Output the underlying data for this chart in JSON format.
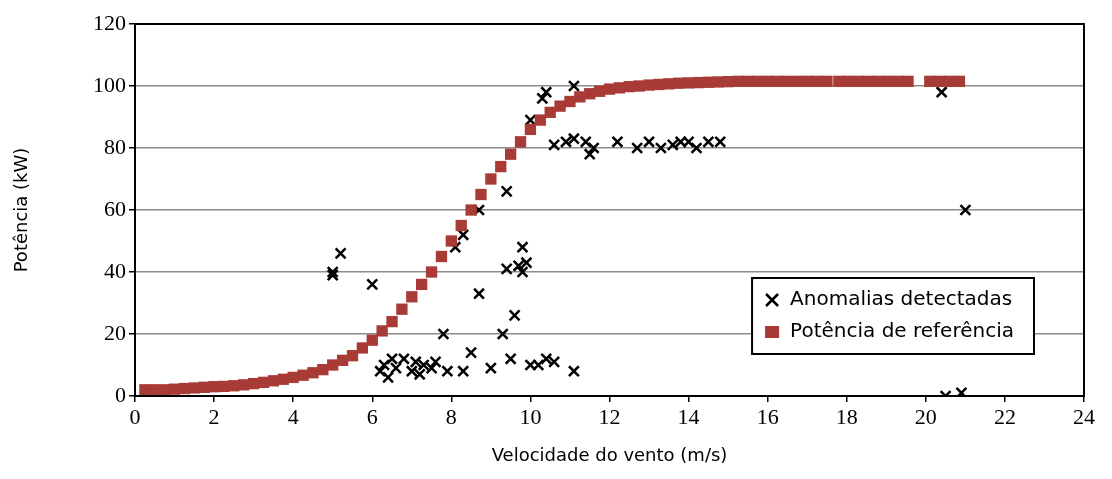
{
  "chart_data": {
    "type": "scatter",
    "xlabel": "Velocidade do vento (m/s)",
    "ylabel": "Potência (kW)",
    "xlim": [
      0,
      24
    ],
    "xticks": [
      0,
      2,
      4,
      6,
      8,
      10,
      12,
      14,
      16,
      18,
      20,
      22,
      24
    ],
    "ylim": [
      0,
      120
    ],
    "yticks": [
      0,
      20,
      40,
      60,
      80,
      100,
      120
    ],
    "grid": "y",
    "legend": "bottom right",
    "series": [
      {
        "name": "Anomalias detectadas",
        "color": "#000000",
        "marker": "cross",
        "x": [
          5.0,
          5.0,
          5.2,
          6.0,
          6.2,
          6.3,
          6.4,
          6.5,
          6.6,
          6.8,
          7.0,
          7.1,
          7.2,
          7.3,
          7.5,
          7.6,
          7.8,
          7.9,
          8.3,
          8.5,
          8.7,
          9.0,
          9.3,
          9.4,
          9.5,
          9.6,
          9.7,
          9.8,
          9.8,
          9.9,
          10.0,
          10.2,
          10.4,
          10.6,
          11.1,
          9.4,
          8.7,
          8.3,
          8.1,
          10.3,
          10.4,
          11.1,
          10.0,
          10.6,
          10.9,
          11.1,
          11.4,
          11.5,
          11.6,
          12.2,
          12.7,
          13.0,
          13.3,
          13.6,
          13.8,
          14.0,
          14.2,
          14.5,
          14.8,
          20.4,
          21.0,
          20.5,
          20.9
        ],
        "values": [
          40,
          39,
          46,
          36,
          8,
          10,
          6,
          12,
          9,
          12,
          8,
          11,
          7,
          10,
          9,
          11,
          20,
          8,
          8,
          14,
          33,
          9,
          20,
          41,
          12,
          26,
          42,
          48,
          40,
          43,
          10,
          10,
          12,
          11,
          8,
          66,
          60,
          52,
          48,
          96,
          98,
          100,
          89,
          81,
          82,
          83,
          82,
          78,
          80,
          82,
          80,
          82,
          80,
          81,
          82,
          82,
          80,
          82,
          82,
          98,
          60,
          0,
          1
        ]
      },
      {
        "name": "Potência de referência",
        "color": "#a93b36",
        "marker": "square",
        "x": [
          0.25,
          0.5,
          0.75,
          1,
          1.25,
          1.5,
          1.75,
          2,
          2.25,
          2.5,
          2.75,
          3,
          3.25,
          3.5,
          3.75,
          4,
          4.25,
          4.5,
          4.75,
          5,
          5.25,
          5.5,
          5.75,
          6,
          6.25,
          6.5,
          6.75,
          7,
          7.25,
          7.5,
          7.75,
          8,
          8.25,
          8.5,
          8.75,
          9,
          9.25,
          9.5,
          9.75,
          10,
          10.25,
          10.5,
          10.75,
          11,
          11.25,
          11.5,
          11.75,
          12,
          12.25,
          12.5,
          12.75,
          13,
          13.25,
          13.5,
          13.75,
          14,
          14.25,
          14.5,
          14.75,
          15,
          15.25,
          15.5,
          15.75,
          16,
          16.25,
          16.5,
          16.75,
          17,
          17.25,
          17.5,
          17.8,
          18.05,
          18.3,
          18.55,
          18.8,
          19.05,
          19.3,
          19.55,
          20.1,
          20.35,
          20.6,
          20.85
        ],
        "values": [
          2,
          2,
          2,
          2.2,
          2.4,
          2.6,
          2.8,
          3,
          3.1,
          3.3,
          3.6,
          4,
          4.4,
          4.9,
          5.4,
          6,
          6.7,
          7.5,
          8.5,
          10,
          11.5,
          13,
          15.5,
          18,
          21,
          24,
          28,
          32,
          36,
          40,
          45,
          50,
          55,
          60,
          65,
          70,
          74,
          78,
          82,
          86,
          89,
          91.5,
          93.5,
          95,
          96.5,
          97.5,
          98.3,
          99,
          99.4,
          99.8,
          100,
          100.3,
          100.5,
          100.7,
          100.9,
          101,
          101.1,
          101.2,
          101.3,
          101.4,
          101.5,
          101.5,
          101.5,
          101.5,
          101.5,
          101.5,
          101.5,
          101.5,
          101.5,
          101.5,
          101.5,
          101.5,
          101.5,
          101.5,
          101.5,
          101.5,
          101.5,
          101.5,
          101.5,
          101.5,
          101.5,
          101.5
        ]
      }
    ]
  }
}
